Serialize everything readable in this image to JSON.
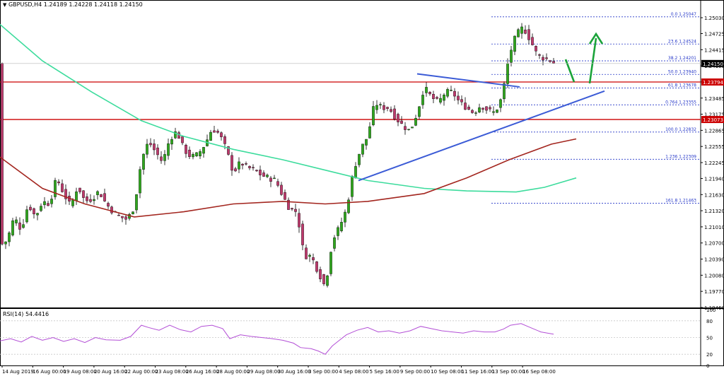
{
  "header": {
    "symbol_icon": "triangle-down-icon",
    "symbol": "GBPUSD,H4",
    "ohlc": [
      "1.24189",
      "1.24228",
      "1.24118",
      "1.24150"
    ]
  },
  "rsi_header": "RSI(14) 54.4416",
  "colors": {
    "bull": "#2fa81d",
    "bear": "#c0396d",
    "ma_fast": "#a3261f",
    "ma_slow": "#3ddc9d",
    "level": "#cc0000",
    "trendline": "#3b5bd6",
    "fib": "#2436c8",
    "arrow": "#1aa33a",
    "rsi": "#b34fd6",
    "grid": "#c8c8c8"
  },
  "chart_data": [
    {
      "type": "candlestick",
      "title": "GBPUSD,H4",
      "ylim": [
        1.1946,
        1.2518
      ],
      "y_ticks": [
        "1.25030",
        "1.24725",
        "1.24415",
        "1.24105",
        "1.23795",
        "1.23485",
        "1.23175",
        "1.22865",
        "1.22555",
        "1.22245",
        "1.21940",
        "1.21630",
        "1.21320",
        "1.21010",
        "1.20700",
        "1.20390",
        "1.20080",
        "1.19770",
        "1.19460"
      ],
      "x_tick_labels": [
        "14 Aug 2019",
        "16 Aug 00:00",
        "19 Aug 08:00",
        "20 Aug 16:00",
        "22 Aug 00:00",
        "23 Aug 08:00",
        "26 Aug 16:00",
        "28 Aug 00:00",
        "29 Aug 08:00",
        "30 Aug 16:00",
        "3 Sep 00:00",
        "4 Sep 08:00",
        "5 Sep 16:00",
        "9 Sep 00:00",
        "10 Sep 08:00",
        "11 Sep 16:00",
        "13 Sep 00:00",
        "16 Sep 08:00"
      ],
      "current_price": "1.24150",
      "price_levels": [
        {
          "label": "1.23794",
          "value": 1.23794
        },
        {
          "label": "1.23073",
          "value": 1.23073
        }
      ],
      "fibonacci": [
        {
          "label": "0.0 1.25047",
          "value": 1.25047
        },
        {
          "label": "23.6 1.24524",
          "value": 1.24524
        },
        {
          "label": "38.2 1.24201",
          "value": 1.24201
        },
        {
          "label": "50.0 1.23940",
          "value": 1.2394
        },
        {
          "label": "61.8 1.23678",
          "value": 1.23678
        },
        {
          "label": "0.764 1.23355",
          "value": 1.23355
        },
        {
          "label": "100.0 1.22832",
          "value": 1.22832
        },
        {
          "label": "1.236 1.22309",
          "value": 1.22309
        },
        {
          "label": "161.8 1.21463",
          "value": 1.21463
        }
      ],
      "anchors": [
        [
          0,
          1.2065
        ],
        [
          10,
          1.2075
        ],
        [
          20,
          1.212
        ],
        [
          30,
          1.2095
        ],
        [
          40,
          1.2145
        ],
        [
          50,
          1.212
        ],
        [
          60,
          1.215
        ],
        [
          70,
          1.2145
        ],
        [
          80,
          1.2195
        ],
        [
          90,
          1.2165
        ],
        [
          100,
          1.214
        ],
        [
          110,
          1.218
        ],
        [
          120,
          1.215
        ],
        [
          130,
          1.2155
        ],
        [
          140,
          1.217
        ],
        [
          150,
          1.2145
        ],
        [
          160,
          1.213
        ],
        [
          170,
          1.212
        ],
        [
          180,
          1.2115
        ],
        [
          190,
          1.214
        ],
        [
          200,
          1.223
        ],
        [
          210,
          1.2265
        ],
        [
          220,
          1.2245
        ],
        [
          230,
          1.2225
        ],
        [
          240,
          1.227
        ],
        [
          250,
          1.2285
        ],
        [
          260,
          1.225
        ],
        [
          270,
          1.2235
        ],
        [
          280,
          1.224
        ],
        [
          290,
          1.226
        ],
        [
          300,
          1.229
        ],
        [
          310,
          1.228
        ],
        [
          320,
          1.225
        ],
        [
          330,
          1.2205
        ],
        [
          340,
          1.2225
        ],
        [
          350,
          1.2215
        ],
        [
          360,
          1.221
        ],
        [
          370,
          1.22
        ],
        [
          380,
          1.2195
        ],
        [
          390,
          1.219
        ],
        [
          400,
          1.216
        ],
        [
          410,
          1.2135
        ],
        [
          420,
          1.213
        ],
        [
          430,
          1.2045
        ],
        [
          440,
          1.2045
        ],
        [
          450,
          1.2015
        ],
        [
          460,
          1.1985
        ],
        [
          470,
          1.2075
        ],
        [
          480,
          1.21
        ],
        [
          490,
          1.2135
        ],
        [
          500,
          1.221
        ],
        [
          510,
          1.225
        ],
        [
          520,
          1.2275
        ],
        [
          530,
          1.234
        ],
        [
          540,
          1.233
        ],
        [
          550,
          1.233
        ],
        [
          560,
          1.231
        ],
        [
          570,
          1.2295
        ],
        [
          580,
          1.2285
        ],
        [
          590,
          1.232
        ],
        [
          600,
          1.237
        ],
        [
          610,
          1.235
        ],
        [
          620,
          1.234
        ],
        [
          630,
          1.236
        ],
        [
          640,
          1.236
        ],
        [
          650,
          1.234
        ],
        [
          660,
          1.233
        ],
        [
          670,
          1.232
        ],
        [
          680,
          1.2335
        ],
        [
          690,
          1.2325
        ],
        [
          700,
          1.232
        ],
        [
          710,
          1.235
        ],
        [
          720,
          1.243
        ],
        [
          730,
          1.247
        ],
        [
          740,
          1.2485
        ],
        [
          750,
          1.246
        ],
        [
          760,
          1.243
        ],
        [
          770,
          1.2425
        ],
        [
          780,
          1.242
        ],
        [
          785,
          1.2415
        ]
      ],
      "ma_fast_anchors": [
        [
          0,
          1.2235
        ],
        [
          60,
          1.2175
        ],
        [
          120,
          1.2145
        ],
        [
          190,
          1.212
        ],
        [
          260,
          1.213
        ],
        [
          330,
          1.2145
        ],
        [
          400,
          1.215
        ],
        [
          460,
          1.2145
        ],
        [
          520,
          1.215
        ],
        [
          600,
          1.2165
        ],
        [
          660,
          1.2195
        ],
        [
          720,
          1.223
        ],
        [
          780,
          1.226
        ],
        [
          815,
          1.227
        ]
      ],
      "ma_slow_anchors": [
        [
          0,
          1.249
        ],
        [
          60,
          1.242
        ],
        [
          130,
          1.236
        ],
        [
          200,
          1.2305
        ],
        [
          260,
          1.2275
        ],
        [
          330,
          1.225
        ],
        [
          400,
          1.223
        ],
        [
          460,
          1.221
        ],
        [
          520,
          1.219
        ],
        [
          600,
          1.2175
        ],
        [
          660,
          1.217
        ],
        [
          730,
          1.2168
        ],
        [
          770,
          1.2177
        ],
        [
          815,
          1.2195
        ]
      ]
    },
    {
      "type": "line",
      "title": "RSI(14) 54.4416",
      "ylim": [
        0,
        100
      ],
      "y_ticks": [
        "100",
        "80",
        "50",
        "20",
        "0"
      ],
      "values": [
        [
          0,
          44
        ],
        [
          15,
          48
        ],
        [
          30,
          42
        ],
        [
          45,
          52
        ],
        [
          60,
          45
        ],
        [
          75,
          50
        ],
        [
          90,
          43
        ],
        [
          105,
          48
        ],
        [
          120,
          41
        ],
        [
          135,
          50
        ],
        [
          150,
          46
        ],
        [
          170,
          45
        ],
        [
          185,
          52
        ],
        [
          200,
          72
        ],
        [
          210,
          68
        ],
        [
          225,
          63
        ],
        [
          240,
          72
        ],
        [
          255,
          64
        ],
        [
          270,
          60
        ],
        [
          285,
          70
        ],
        [
          300,
          72
        ],
        [
          315,
          66
        ],
        [
          325,
          48
        ],
        [
          340,
          55
        ],
        [
          355,
          52
        ],
        [
          370,
          50
        ],
        [
          385,
          48
        ],
        [
          400,
          45
        ],
        [
          415,
          40
        ],
        [
          425,
          32
        ],
        [
          440,
          30
        ],
        [
          450,
          26
        ],
        [
          460,
          20
        ],
        [
          470,
          35
        ],
        [
          480,
          45
        ],
        [
          490,
          55
        ],
        [
          505,
          63
        ],
        [
          520,
          68
        ],
        [
          535,
          60
        ],
        [
          550,
          62
        ],
        [
          565,
          58
        ],
        [
          580,
          62
        ],
        [
          595,
          70
        ],
        [
          610,
          66
        ],
        [
          625,
          62
        ],
        [
          640,
          60
        ],
        [
          655,
          58
        ],
        [
          670,
          62
        ],
        [
          685,
          60
        ],
        [
          700,
          60
        ],
        [
          712,
          65
        ],
        [
          722,
          72
        ],
        [
          737,
          75
        ],
        [
          750,
          68
        ],
        [
          765,
          60
        ],
        [
          783,
          56
        ]
      ]
    }
  ]
}
